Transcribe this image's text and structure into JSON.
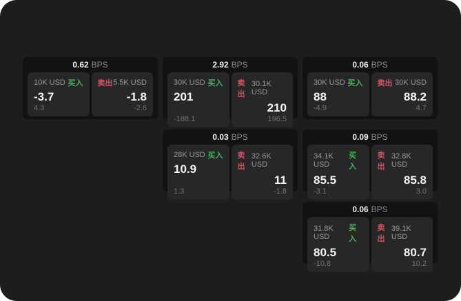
{
  "app": {
    "background": "#1d1d1d",
    "card_background": "#121212",
    "panel_background": "#272727",
    "accent_green": "#45b35e",
    "accent_red": "#d15360",
    "value_color": "#f5f5f5",
    "label_color": "#9a9a9a",
    "sub_color": "#737373"
  },
  "labels": {
    "bps_unit": "BPS",
    "buy": "买入",
    "sell": "卖出"
  },
  "cards": [
    {
      "bps": "0.62",
      "buy": {
        "amount": "10K USD",
        "value": "-3.7",
        "sub": "4.3"
      },
      "sell": {
        "amount": "5.5K USD",
        "value": "-1.8",
        "sub": "-2.6"
      }
    },
    {
      "bps": "2.92",
      "buy": {
        "amount": "30K USD",
        "value": "201",
        "sub": "-188.1"
      },
      "sell": {
        "amount": "30.1K USD",
        "value": "210",
        "sub": "196.5"
      }
    },
    {
      "bps": "0.06",
      "buy": {
        "amount": "30K USD",
        "value": "88",
        "sub": "-4.9"
      },
      "sell": {
        "amount": "30K USD",
        "value": "88.2",
        "sub": "4.7"
      }
    },
    {
      "bps": "0.03",
      "buy": {
        "amount": "28K USD",
        "value": "10.9",
        "sub": "1.3"
      },
      "sell": {
        "amount": "32.6K USD",
        "value": "11",
        "sub": "-1.8"
      }
    },
    {
      "bps": "0.09",
      "buy": {
        "amount": "34.1K USD",
        "value": "85.5",
        "sub": "-3.1"
      },
      "sell": {
        "amount": "32.8K USD",
        "value": "85.8",
        "sub": "3.0"
      }
    },
    {
      "bps": "0.06",
      "buy": {
        "amount": "31.8K USD",
        "value": "80.5",
        "sub": "-10.8"
      },
      "sell": {
        "amount": "39.1K USD",
        "value": "80.7",
        "sub": "10.2"
      }
    }
  ]
}
